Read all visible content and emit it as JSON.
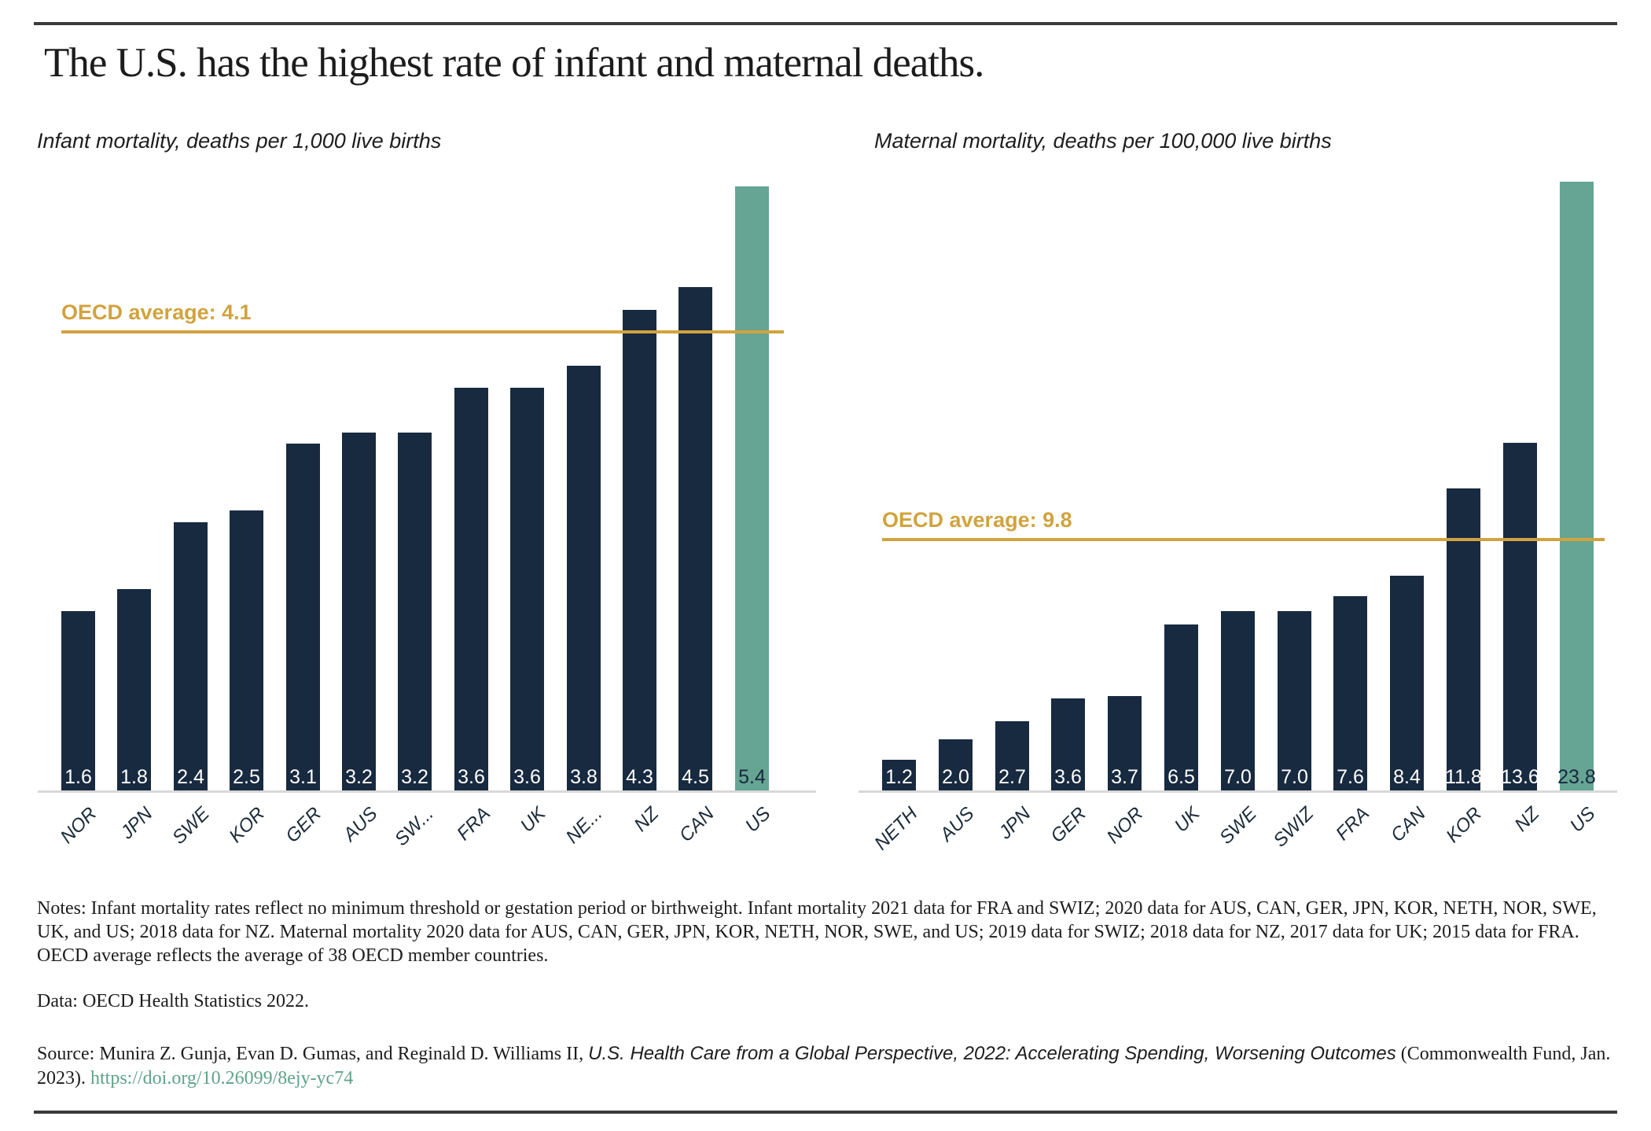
{
  "title": "The U.S. has the highest rate of infant and maternal deaths.",
  "chart_data": [
    {
      "type": "bar",
      "id": "infant",
      "title": "Infant mortality, deaths per 1,000 live births",
      "categories": [
        "NOR",
        "JPN",
        "SWE",
        "KOR",
        "GER",
        "AUS",
        "SW...",
        "FRA",
        "UK",
        "NE...",
        "NZ",
        "CAN",
        "US"
      ],
      "values": [
        1.6,
        1.8,
        2.4,
        2.5,
        3.1,
        3.2,
        3.2,
        3.6,
        3.6,
        3.8,
        4.3,
        4.5,
        5.4
      ],
      "value_labels": [
        "1.6",
        "1.8",
        "2.4",
        "2.5",
        "3.1",
        "3.2",
        "3.2",
        "3.6",
        "3.6",
        "3.8",
        "4.3",
        "4.5",
        "5.4"
      ],
      "oecd_average": 4.1,
      "oecd_label": "OECD average: 4.1",
      "highlight_category": "US",
      "ylim": [
        0,
        5.5
      ],
      "grid": false,
      "legend": "none"
    },
    {
      "type": "bar",
      "id": "maternal",
      "title": "Maternal mortality, deaths per 100,000 live births",
      "categories": [
        "NETH",
        "AUS",
        "JPN",
        "GER",
        "NOR",
        "UK",
        "SWE",
        "SWIZ",
        "FRA",
        "CAN",
        "KOR",
        "NZ",
        "US"
      ],
      "values": [
        1.2,
        2.0,
        2.7,
        3.6,
        3.7,
        6.5,
        7.0,
        7.0,
        7.6,
        8.4,
        11.8,
        13.6,
        23.8
      ],
      "value_labels": [
        "1.2",
        "2.0",
        "2.7",
        "3.6",
        "3.7",
        "6.5",
        "7.0",
        "7.0",
        "7.6",
        "8.4",
        "11.8",
        "13.6",
        "23.8"
      ],
      "oecd_average": 9.8,
      "oecd_label": "OECD average: 9.8",
      "highlight_category": "US",
      "ylim": [
        0,
        24
      ],
      "grid": false,
      "legend": "none"
    }
  ],
  "notes": "Notes: Infant mortality rates reflect no minimum threshold or gestation period or birthweight. Infant mortality 2021 data for FRA and SWIZ; 2020 data for AUS, CAN, GER, JPN, KOR, NETH, NOR, SWE, UK, and US; 2018 data for NZ. Maternal mortality 2020 data for AUS, CAN, GER, JPN, KOR, NETH, NOR, SWE, and US; 2019 data for SWIZ; 2018 data for NZ, 2017 data for UK; 2015 data for FRA. OECD average reflects the average of 38 OECD member countries.",
  "data_line": "Data: OECD Health Statistics 2022.",
  "source": {
    "prefix": "Source: Munira Z. Gunja, Evan D. Gumas, and Reginald D. Williams II, ",
    "publication": "U.S. Health Care from a Global Perspective, 2022: Accelerating Spending, Worsening Outcomes",
    "suffix": " (Commonwealth Fund, Jan. 2023). ",
    "link": "https://doi.org/10.26099/8ejy-yc74"
  },
  "colors": {
    "bar_navy": "#182a40",
    "bar_highlight": "#66a493",
    "oecd_gold": "#d1a33e",
    "link_green": "#5fa389",
    "axis_gray": "#d8d8d8",
    "rule_dark": "#3b3b3b",
    "value_label_light": "#ffffff",
    "value_label_dark": "#16293c",
    "category_label": "#1b2b3a"
  }
}
